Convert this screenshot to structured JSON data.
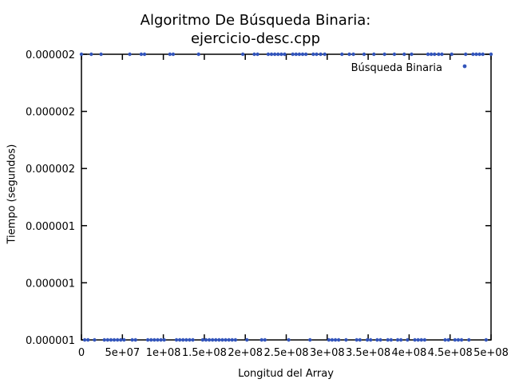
{
  "chart_data": {
    "type": "scatter",
    "title": [
      "Algoritmo De Búsqueda Binaria:",
      "ejercicio-desc.cpp"
    ],
    "xlabel": "Longitud del Array",
    "ylabel": "Tiempo (segundos)",
    "xlim": [
      0,
      500000000
    ],
    "ylim": [
      1e-06,
      2e-06
    ],
    "xticks": [
      0,
      50000000,
      100000000,
      150000000,
      200000000,
      250000000,
      300000000,
      350000000,
      400000000,
      450000000,
      500000000
    ],
    "xtick_labels": [
      "0",
      "5e+07",
      "1e+08",
      "1.5e+08",
      "2e+08",
      "2.5e+08",
      "3e+08",
      "3.5e+08",
      "4e+08",
      "4.5e+08",
      "5e+08"
    ],
    "yticks": [
      1e-06,
      1.2e-06,
      1.4e-06,
      1.6e-06,
      1.8e-06,
      2e-06
    ],
    "ytick_labels": [
      "0.000001",
      "0.000001",
      "0.000001",
      "0.000002",
      "0.000002",
      "0.000002"
    ],
    "grid": false,
    "legend_position": "top-right",
    "series": [
      {
        "name": "Búsqueda Binaria",
        "color": "#3355bb",
        "x_high": [
          0,
          12000000,
          24000000,
          59000000,
          73000000,
          77000000,
          108000000,
          112000000,
          143000000,
          197000000,
          211000000,
          215000000,
          228000000,
          232000000,
          236000000,
          240000000,
          244000000,
          248000000,
          258000000,
          262000000,
          266000000,
          270000000,
          274000000,
          283000000,
          287000000,
          292000000,
          297000000,
          318000000,
          327000000,
          332000000,
          345000000,
          357000000,
          370000000,
          382000000,
          394000000,
          403000000,
          423000000,
          427000000,
          431000000,
          436000000,
          440000000,
          452000000,
          469000000,
          478000000,
          482000000,
          486000000,
          490000000,
          500000000
        ],
        "x_low": [
          4000000,
          8000000,
          16000000,
          28000000,
          32000000,
          36000000,
          40000000,
          44000000,
          48000000,
          52000000,
          62000000,
          66000000,
          81000000,
          85000000,
          89000000,
          93000000,
          97000000,
          101000000,
          116000000,
          120000000,
          124000000,
          128000000,
          132000000,
          136000000,
          148000000,
          152000000,
          156000000,
          160000000,
          164000000,
          168000000,
          172000000,
          176000000,
          180000000,
          184000000,
          188000000,
          202000000,
          220000000,
          224000000,
          253000000,
          279000000,
          302000000,
          306000000,
          310000000,
          314000000,
          323000000,
          336000000,
          340000000,
          349000000,
          353000000,
          361000000,
          365000000,
          374000000,
          378000000,
          386000000,
          390000000,
          398000000,
          407000000,
          411000000,
          415000000,
          419000000,
          444000000,
          448000000,
          456000000,
          460000000,
          464000000,
          473000000,
          494000000
        ],
        "y_high": 2e-06,
        "y_low": 1e-06
      }
    ]
  }
}
